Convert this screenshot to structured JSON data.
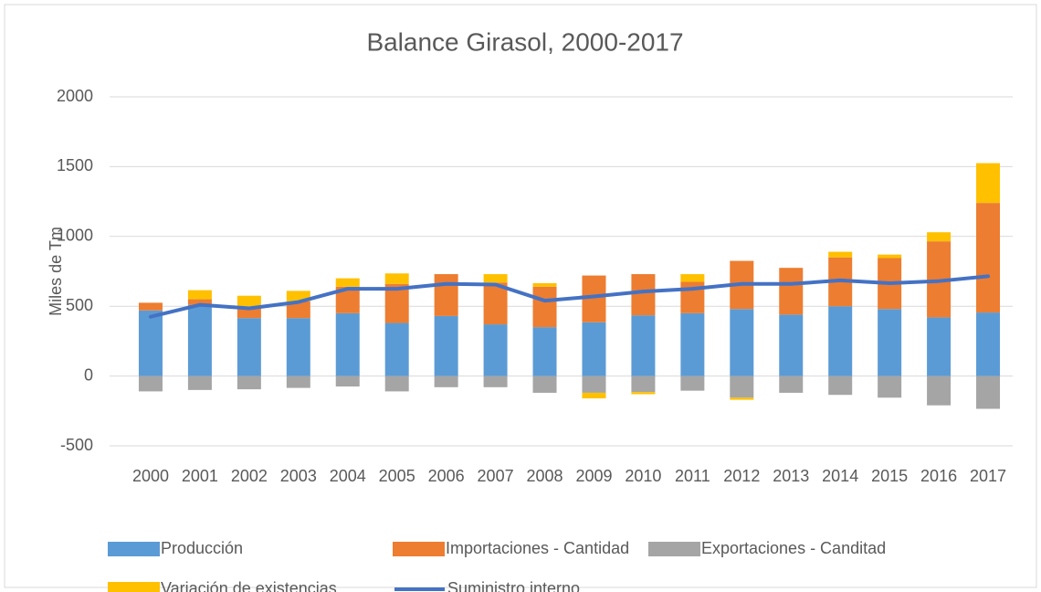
{
  "chart_data": {
    "type": "bar",
    "title": "Balance Girasol, 2000-2017",
    "y_label": "Miles de Tm",
    "categories": [
      "2000",
      "2001",
      "2002",
      "2003",
      "2004",
      "2005",
      "2006",
      "2007",
      "2008",
      "2009",
      "2010",
      "2011",
      "2012",
      "2013",
      "2014",
      "2015",
      "2016",
      "2017"
    ],
    "series": [
      {
        "name": "Producción",
        "color": "#5b9bd5",
        "values": [
          470,
          510,
          415,
          415,
          450,
          380,
          430,
          370,
          350,
          385,
          435,
          450,
          480,
          440,
          500,
          480,
          420,
          455
        ]
      },
      {
        "name": "Importaciones - Cantidad",
        "color": "#ed7d31",
        "values": [
          55,
          40,
          80,
          120,
          190,
          280,
          300,
          300,
          290,
          335,
          295,
          225,
          345,
          335,
          350,
          365,
          545,
          785
        ]
      },
      {
        "name": "Exportaciones - Canditad",
        "color": "#a5a5a5",
        "values": [
          -110,
          -100,
          -95,
          -85,
          -75,
          -110,
          -80,
          -80,
          -120,
          -120,
          -115,
          -105,
          -155,
          -120,
          -135,
          -155,
          -210,
          -235
        ]
      },
      {
        "name": "Variación de existencias",
        "color": "#ffc000",
        "values": [
          0,
          65,
          80,
          75,
          60,
          75,
          0,
          60,
          25,
          -40,
          -15,
          55,
          -15,
          0,
          40,
          25,
          65,
          285
        ]
      },
      {
        "name": "Suministro interno",
        "color": "#4472c4",
        "type": "line",
        "values": [
          425,
          510,
          485,
          530,
          625,
          625,
          660,
          655,
          540,
          570,
          605,
          625,
          660,
          660,
          685,
          665,
          680,
          715
        ]
      }
    ],
    "ylim": [
      -500,
      2000
    ],
    "yticks": [
      -500,
      0,
      500,
      1000,
      1500,
      2000
    ],
    "grid": true,
    "legend": "bottom"
  }
}
